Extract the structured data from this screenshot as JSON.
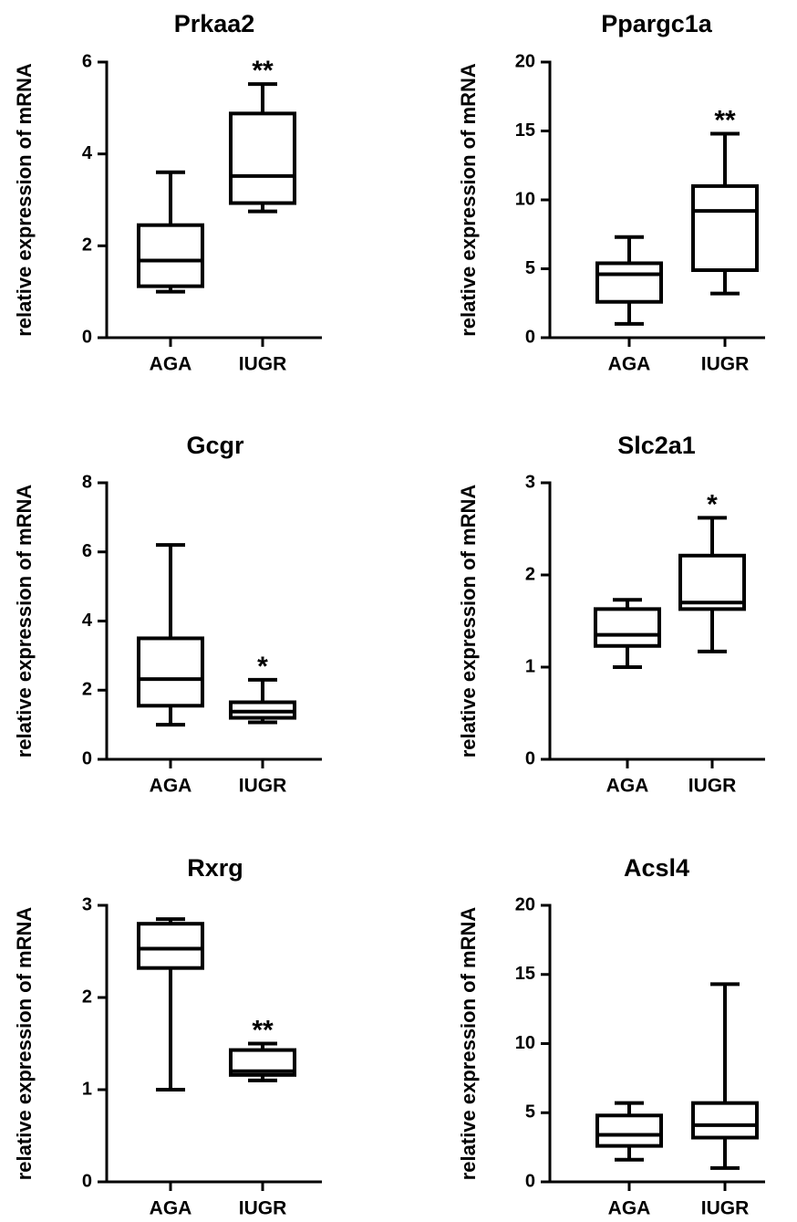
{
  "colors": {
    "stroke": "#000000",
    "background": "#ffffff"
  },
  "chart_data": [
    {
      "type": "boxplot",
      "title": "Prkaa2",
      "ylabel": "relative expression of mRNA",
      "xlabel": "",
      "ylim": [
        0,
        6
      ],
      "yticks": [
        0,
        2,
        4,
        6
      ],
      "categories": [
        "AGA",
        "IUGR"
      ],
      "boxes": [
        {
          "category": "AGA",
          "min": 1.0,
          "q1": 1.12,
          "median": 1.68,
          "q3": 2.45,
          "max": 3.6,
          "significance": ""
        },
        {
          "category": "IUGR",
          "min": 2.75,
          "q1": 2.93,
          "median": 3.52,
          "q3": 4.88,
          "max": 5.52,
          "significance": "**"
        }
      ]
    },
    {
      "type": "boxplot",
      "title": "Ppargc1a",
      "ylabel": "relative expression of mRNA",
      "xlabel": "",
      "ylim": [
        0,
        20
      ],
      "yticks": [
        0,
        5,
        10,
        15,
        20
      ],
      "categories": [
        "AGA",
        "IUGR"
      ],
      "boxes": [
        {
          "category": "AGA",
          "min": 1.0,
          "q1": 2.6,
          "median": 4.6,
          "q3": 5.4,
          "max": 7.3,
          "significance": ""
        },
        {
          "category": "IUGR",
          "min": 3.2,
          "q1": 4.9,
          "median": 9.2,
          "q3": 11.0,
          "max": 14.8,
          "significance": "**"
        }
      ]
    },
    {
      "type": "boxplot",
      "title": "Gcgr",
      "ylabel": "relative expression of mRNA",
      "xlabel": "",
      "ylim": [
        0,
        8
      ],
      "yticks": [
        0,
        2,
        4,
        6,
        8
      ],
      "categories": [
        "AGA",
        "IUGR"
      ],
      "boxes": [
        {
          "category": "AGA",
          "min": 1.0,
          "q1": 1.55,
          "median": 2.32,
          "q3": 3.5,
          "max": 6.2,
          "significance": ""
        },
        {
          "category": "IUGR",
          "min": 1.07,
          "q1": 1.2,
          "median": 1.38,
          "q3": 1.65,
          "max": 2.3,
          "significance": "*"
        }
      ]
    },
    {
      "type": "boxplot",
      "title": "Slc2a1",
      "ylabel": "relative expression of mRNA",
      "xlabel": "",
      "ylim": [
        0,
        3
      ],
      "yticks": [
        0,
        1,
        2,
        3
      ],
      "categories": [
        "AGA",
        "IUGR"
      ],
      "boxes": [
        {
          "category": "AGA",
          "min": 1.0,
          "q1": 1.23,
          "median": 1.35,
          "q3": 1.63,
          "max": 1.73,
          "significance": ""
        },
        {
          "category": "IUGR",
          "min": 1.17,
          "q1": 1.63,
          "median": 1.7,
          "q3": 2.21,
          "max": 2.62,
          "significance": "*"
        }
      ]
    },
    {
      "type": "boxplot",
      "title": "Rxrg",
      "ylabel": "relative expression of mRNA",
      "xlabel": "",
      "ylim": [
        0,
        3
      ],
      "yticks": [
        0,
        1,
        2,
        3
      ],
      "categories": [
        "AGA",
        "IUGR"
      ],
      "boxes": [
        {
          "category": "AGA",
          "min": 1.0,
          "q1": 2.32,
          "median": 2.53,
          "q3": 2.8,
          "max": 2.85,
          "significance": ""
        },
        {
          "category": "IUGR",
          "min": 1.1,
          "q1": 1.16,
          "median": 1.2,
          "q3": 1.43,
          "max": 1.5,
          "significance": "**"
        }
      ]
    },
    {
      "type": "boxplot",
      "title": "Acsl4",
      "ylabel": "relative expression of mRNA",
      "xlabel": "",
      "ylim": [
        0,
        20
      ],
      "yticks": [
        0,
        5,
        10,
        15,
        20
      ],
      "categories": [
        "AGA",
        "IUGR"
      ],
      "boxes": [
        {
          "category": "AGA",
          "min": 1.6,
          "q1": 2.6,
          "median": 3.4,
          "q3": 4.8,
          "max": 5.7,
          "significance": ""
        },
        {
          "category": "IUGR",
          "min": 1.0,
          "q1": 3.2,
          "median": 4.1,
          "q3": 5.7,
          "max": 14.3,
          "significance": ""
        }
      ]
    }
  ]
}
